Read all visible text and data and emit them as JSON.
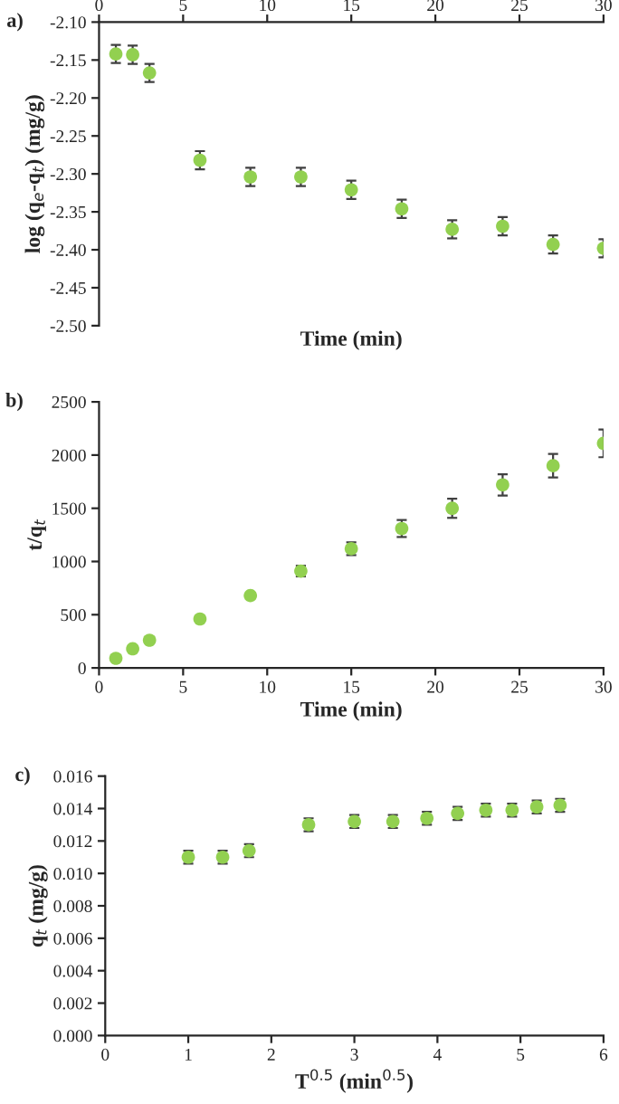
{
  "chart_data": [
    {
      "type": "scatter",
      "title": "a)",
      "xlabel": "Time (min)",
      "ylabel": "log (q$_{e}$-q$_{t}$) (mg/g)",
      "xlim": [
        0,
        30
      ],
      "xticks": [
        0,
        5,
        10,
        15,
        20,
        25,
        30
      ],
      "ylim": [
        -2.5,
        -2.1
      ],
      "yticks": [
        {
          "value": -2.5,
          "label": "-2.50"
        },
        {
          "value": -2.45,
          "label": "-2.45"
        },
        {
          "value": -2.4,
          "label": "-2.40"
        },
        {
          "value": -2.35,
          "label": "-2.35"
        },
        {
          "value": -2.3,
          "label": "-2.30"
        },
        {
          "value": -2.25,
          "label": "-2.25"
        },
        {
          "value": -2.2,
          "label": "-2.20"
        },
        {
          "value": -2.15,
          "label": "-2.15"
        },
        {
          "value": -2.1,
          "label": "-2.10"
        }
      ],
      "marker": "circle",
      "grid": false,
      "legend": false,
      "x": [
        1,
        2,
        3,
        6,
        9,
        12,
        15,
        18,
        21,
        24,
        27,
        30
      ],
      "series": [
        {
          "color": "#92d050",
          "values": [
            -2.142,
            -2.143,
            -2.167,
            -2.282,
            -2.304,
            -2.304,
            -2.321,
            -2.346,
            -2.373,
            -2.369,
            -2.393,
            -2.398
          ],
          "errors": [
            0.012,
            0.012,
            0.012,
            0.012,
            0.012,
            0.012,
            0.012,
            0.012,
            0.012,
            0.012,
            0.012,
            0.012
          ]
        }
      ]
    },
    {
      "type": "scatter",
      "title": "b)",
      "xlabel": "Time (min)",
      "ylabel": "t/q$_{t}$",
      "xlim": [
        0,
        30
      ],
      "xticks": [
        0,
        5,
        10,
        15,
        20,
        25,
        30
      ],
      "ylim": [
        0,
        2500
      ],
      "yticks": [
        0,
        500,
        1000,
        1500,
        2000,
        2500
      ],
      "marker": "circle",
      "grid": false,
      "legend": false,
      "x": [
        1,
        2,
        3,
        6,
        9,
        12,
        15,
        18,
        21,
        24,
        27,
        30
      ],
      "series": [
        {
          "color": "#92d050",
          "values": [
            90,
            180,
            260,
            460,
            680,
            910,
            1120,
            1310,
            1500,
            1720,
            1900,
            2110
          ],
          "errors": [
            null,
            null,
            null,
            null,
            null,
            50,
            60,
            80,
            90,
            100,
            110,
            130
          ]
        }
      ]
    },
    {
      "type": "scatter",
      "title": "c)",
      "xlabel": "T$^{0.5}$ (min$^{0.5}$)",
      "ylabel": "q$_{t}$ (mg/g)",
      "xlim": [
        0,
        6
      ],
      "xticks": [
        0,
        1,
        2,
        3,
        4,
        5,
        6
      ],
      "ylim": [
        0,
        0.016
      ],
      "yticks": [
        {
          "value": 0,
          "label": "0.000"
        },
        {
          "value": 0.002,
          "label": "0.002"
        },
        {
          "value": 0.004,
          "label": "0.004"
        },
        {
          "value": 0.006,
          "label": "0.006"
        },
        {
          "value": 0.008,
          "label": "0.008"
        },
        {
          "value": 0.01,
          "label": "0.010"
        },
        {
          "value": 0.012,
          "label": "0.012"
        },
        {
          "value": 0.014,
          "label": "0.014"
        },
        {
          "value": 0.016,
          "label": "0.016"
        }
      ],
      "marker": "circle",
      "grid": false,
      "legend": false,
      "x": [
        1,
        1.414,
        1.732,
        2.449,
        3,
        3.464,
        3.873,
        4.243,
        4.583,
        4.899,
        5.196,
        5.477
      ],
      "series": [
        {
          "color": "#92d050",
          "values": [
            0.011,
            0.011,
            0.0114,
            0.013,
            0.0132,
            0.0132,
            0.0134,
            0.0137,
            0.0139,
            0.0139,
            0.0141,
            0.0142
          ],
          "errors": [
            0.0004,
            0.0004,
            0.0004,
            0.0004,
            0.0004,
            0.0004,
            0.0004,
            0.0004,
            0.0004,
            0.0004,
            0.0004,
            0.0004
          ]
        }
      ]
    }
  ]
}
